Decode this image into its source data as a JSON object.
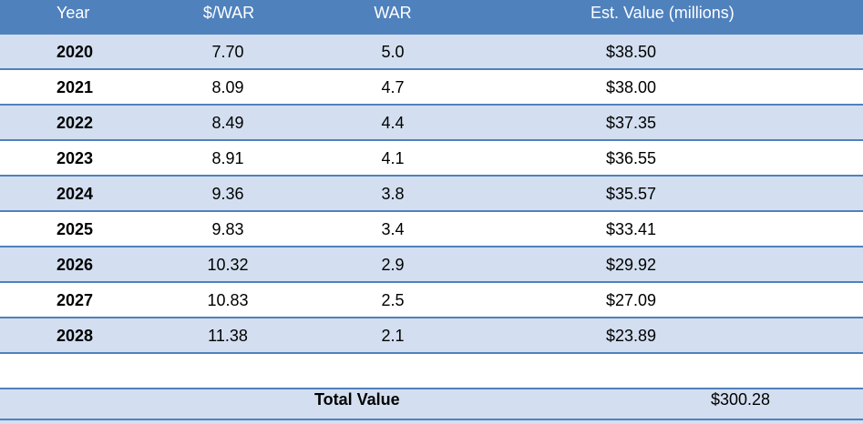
{
  "table": {
    "columns": [
      "Year",
      "$/WAR",
      "WAR",
      "Est. Value (millions)"
    ],
    "rows": [
      {
        "year": "2020",
        "dollars_per_war": "7.70",
        "war": "5.0",
        "value": "$38.50"
      },
      {
        "year": "2021",
        "dollars_per_war": "8.09",
        "war": "4.7",
        "value": "$38.00"
      },
      {
        "year": "2022",
        "dollars_per_war": "8.49",
        "war": "4.4",
        "value": "$37.35"
      },
      {
        "year": "2023",
        "dollars_per_war": "8.91",
        "war": "4.1",
        "value": "$36.55"
      },
      {
        "year": "2024",
        "dollars_per_war": "9.36",
        "war": "3.8",
        "value": "$35.57"
      },
      {
        "year": "2025",
        "dollars_per_war": "9.83",
        "war": "3.4",
        "value": "$33.41"
      },
      {
        "year": "2026",
        "dollars_per_war": "10.32",
        "war": "2.9",
        "value": "$29.92"
      },
      {
        "year": "2027",
        "dollars_per_war": "10.83",
        "war": "2.5",
        "value": "$27.09"
      },
      {
        "year": "2028",
        "dollars_per_war": "11.38",
        "war": "2.1",
        "value": "$23.89"
      }
    ],
    "total": {
      "label": "Total Value",
      "value": "$300.28"
    }
  },
  "colors": {
    "header_background": "#4f81bd",
    "header_text": "#ffffff",
    "band_blue": "#d3dff0",
    "band_white": "#ffffff",
    "separator": "#4f81bd"
  }
}
